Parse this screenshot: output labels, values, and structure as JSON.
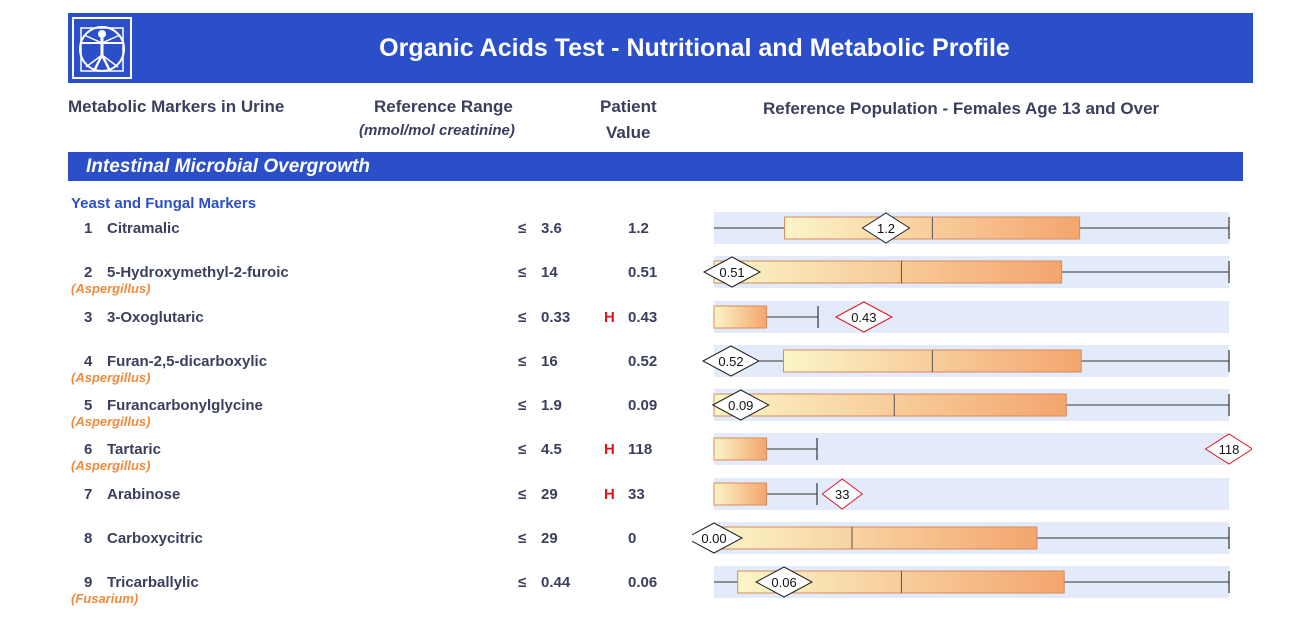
{
  "header": {
    "title": "Organic Acids Test - Nutritional and Metabolic Profile"
  },
  "columns": {
    "markers": "Metabolic Markers in Urine",
    "reference_range": "Reference Range",
    "reference_units": "(mmol/mol creatinine)",
    "patient_line1": "Patient",
    "patient_line2": "Value",
    "population": "Reference Population - Females Age 13 and Over"
  },
  "section": {
    "title": "Intestinal Microbial Overgrowth",
    "subsection": "Yeast and Fungal Markers"
  },
  "colors": {
    "banner": "#2b4fc9",
    "high_flag": "#e0141e",
    "organism": "#f08a3c",
    "box_low": "#fbf5c8",
    "box_high": "#f4a56e",
    "track": "#e3ebfa"
  },
  "markers": [
    {
      "num": "1",
      "name": "Citramalic",
      "organism": "",
      "leq": "≤",
      "ref": "3.6",
      "flag": "",
      "value": "1.2",
      "plot": {
        "box_start": 0.137,
        "median": 0.424,
        "box_end": 0.71,
        "whisker_end": 1.0,
        "marker": 0.334,
        "out_of_range": false
      }
    },
    {
      "num": "2",
      "name": "5-Hydroxymethyl-2-furoic",
      "organism": "(Aspergillus)",
      "leq": "≤",
      "ref": "14",
      "flag": "",
      "value": "0.51",
      "plot": {
        "box_start": 0.0,
        "median": 0.364,
        "box_end": 0.675,
        "whisker_end": 1.0,
        "marker": 0.035,
        "out_of_range": false
      }
    },
    {
      "num": "3",
      "name": "3-Oxoglutaric",
      "organism": "",
      "leq": "≤",
      "ref": "0.33",
      "flag": "H",
      "value": "0.43",
      "plot": {
        "box_start": 0.0,
        "median": null,
        "box_end": 0.102,
        "whisker_end": 0.202,
        "marker": 0.291,
        "out_of_range": true
      }
    },
    {
      "num": "4",
      "name": "Furan-2,5-dicarboxylic",
      "organism": "(Aspergillus)",
      "leq": "≤",
      "ref": "16",
      "flag": "",
      "value": "0.52",
      "plot": {
        "box_start": 0.135,
        "median": 0.424,
        "box_end": 0.713,
        "whisker_end": 1.0,
        "marker": 0.033,
        "out_of_range": false
      }
    },
    {
      "num": "5",
      "name": "Furancarbonylglycine",
      "organism": "(Aspergillus)",
      "leq": "≤",
      "ref": "1.9",
      "flag": "",
      "value": "0.09",
      "plot": {
        "box_start": 0.0,
        "median": 0.35,
        "box_end": 0.684,
        "whisker_end": 1.0,
        "marker": 0.052,
        "out_of_range": false
      }
    },
    {
      "num": "6",
      "name": "Tartaric",
      "organism": "(Aspergillus)",
      "leq": "≤",
      "ref": "4.5",
      "flag": "H",
      "value": "118",
      "plot": {
        "box_start": 0.0,
        "median": null,
        "box_end": 0.102,
        "whisker_end": 0.2,
        "marker": 1.0,
        "out_of_range": true
      }
    },
    {
      "num": "7",
      "name": "Arabinose",
      "organism": "",
      "leq": "≤",
      "ref": "29",
      "flag": "H",
      "value": "33",
      "plot": {
        "box_start": 0.0,
        "median": null,
        "box_end": 0.102,
        "whisker_end": 0.2,
        "marker": 0.249,
        "out_of_range": true
      }
    },
    {
      "num": "8",
      "name": "Carboxycitric",
      "organism": "",
      "leq": "≤",
      "ref": "29",
      "flag": "",
      "value": "0",
      "plot": {
        "box_start": 0.0,
        "median": 0.268,
        "box_end": 0.627,
        "whisker_end": 1.0,
        "marker": 0.0,
        "marker_label": "0.00",
        "out_of_range": false
      }
    },
    {
      "num": "9",
      "name": "Tricarballylic",
      "organism": "(Fusarium)",
      "leq": "≤",
      "ref": "0.44",
      "flag": "",
      "value": "0.06",
      "plot": {
        "box_start": 0.046,
        "median": 0.364,
        "box_end": 0.68,
        "whisker_end": 1.0,
        "marker": 0.136,
        "out_of_range": false
      }
    }
  ]
}
